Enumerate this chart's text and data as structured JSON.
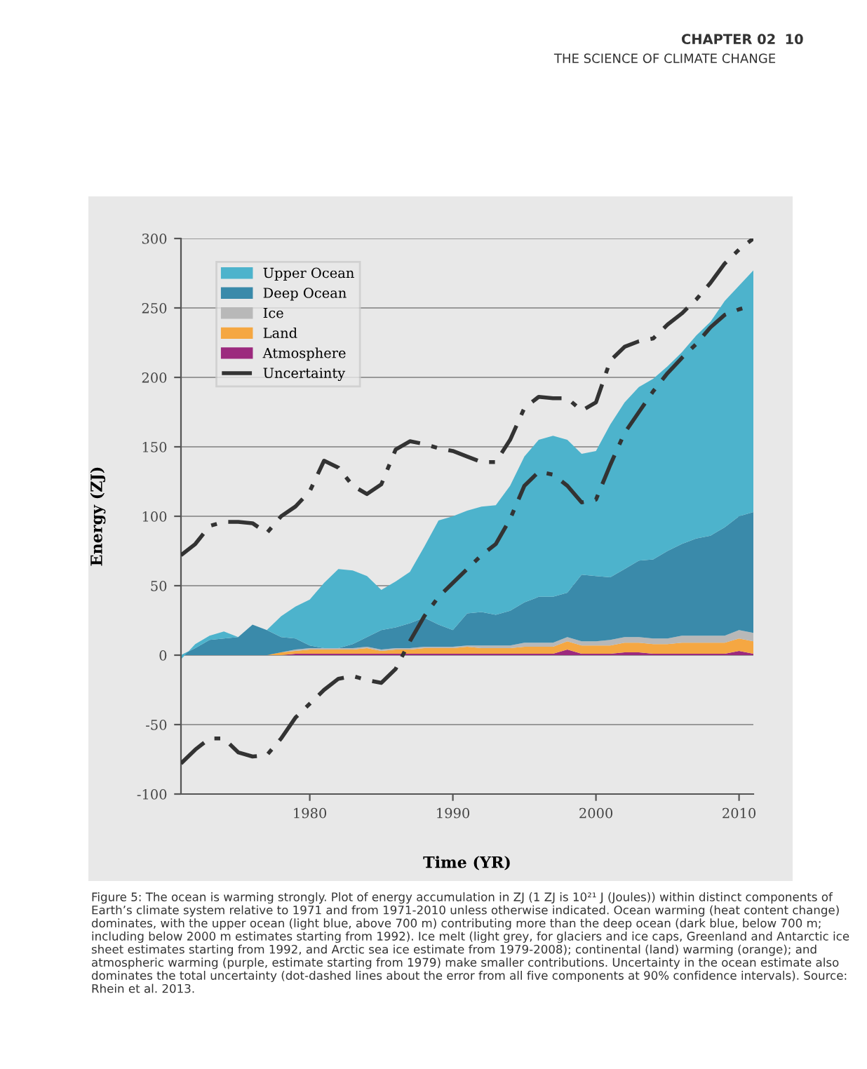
{
  "chart_data": {
    "type": "area",
    "stacked": true,
    "xlabel": "Time (YR)",
    "ylabel": "Energy (ZJ)",
    "x": [
      1971,
      1972,
      1973,
      1974,
      1975,
      1976,
      1977,
      1978,
      1979,
      1980,
      1981,
      1982,
      1983,
      1984,
      1985,
      1986,
      1987,
      1988,
      1989,
      1990,
      1991,
      1992,
      1993,
      1994,
      1995,
      1996,
      1997,
      1998,
      1999,
      2000,
      2001,
      2002,
      2003,
      2004,
      2005,
      2006,
      2007,
      2008,
      2009,
      2010,
      2011
    ],
    "series": [
      {
        "name": "Atmosphere",
        "color": "#9c2a7e",
        "values": [
          0,
          0,
          0,
          0,
          0,
          0,
          0,
          0,
          1,
          1,
          1,
          1,
          1,
          1,
          1,
          1,
          1,
          1,
          1,
          1,
          1,
          1,
          1,
          1,
          1,
          1,
          1,
          4,
          1,
          1,
          1,
          2,
          2,
          1,
          1,
          1,
          1,
          1,
          1,
          3,
          1
        ]
      },
      {
        "name": "Land",
        "color": "#f5a742",
        "values": [
          0,
          0,
          0,
          0,
          0,
          0,
          0,
          2,
          2,
          3,
          3,
          3,
          3,
          4,
          2,
          3,
          3,
          4,
          4,
          4,
          5,
          4,
          4,
          4,
          5,
          5,
          5,
          6,
          6,
          6,
          6,
          7,
          7,
          7,
          7,
          8,
          8,
          8,
          8,
          9,
          9
        ]
      },
      {
        "name": "Ice",
        "color": "#b8b8b8",
        "values": [
          0,
          0,
          0,
          0,
          0,
          0,
          0,
          0,
          1,
          1,
          1,
          1,
          1,
          1,
          1,
          1,
          1,
          1,
          1,
          1,
          1,
          2,
          2,
          2,
          3,
          3,
          3,
          3,
          3,
          3,
          4,
          4,
          4,
          4,
          4,
          5,
          5,
          5,
          5,
          6,
          6
        ]
      },
      {
        "name": "Deep Ocean",
        "color": "#3a8aaa",
        "values": [
          0,
          5,
          11,
          12,
          13,
          22,
          18,
          11,
          8,
          2,
          0,
          0,
          3,
          7,
          14,
          15,
          18,
          21,
          16,
          12,
          23,
          24,
          22,
          25,
          29,
          33,
          33,
          32,
          48,
          47,
          45,
          49,
          55,
          57,
          63,
          66,
          70,
          72,
          78,
          82,
          87
        ]
      },
      {
        "name": "Upper Ocean",
        "color": "#4db3cc",
        "values": [
          -3,
          3,
          3,
          5,
          0,
          0,
          0,
          15,
          23,
          33,
          47,
          57,
          53,
          44,
          29,
          33,
          37,
          51,
          75,
          82,
          74,
          76,
          79,
          90,
          105,
          113,
          116,
          110,
          87,
          90,
          110,
          120,
          125,
          130,
          133,
          138,
          146,
          154,
          163,
          166,
          174
        ]
      },
      {
        "name": "Uncertainty",
        "type": "line",
        "color": "#333333",
        "line_style": "dashdot",
        "values": [
          72,
          80,
          93,
          96,
          96,
          95,
          88,
          100,
          107,
          118,
          140,
          135,
          122,
          116,
          123,
          148,
          154,
          152,
          149,
          147,
          143,
          139,
          139,
          155,
          178,
          186,
          185,
          185,
          176,
          182,
          212,
          222,
          226,
          228,
          238,
          246,
          256,
          268,
          282,
          292,
          300
        ]
      },
      {
        "type": "line",
        "color": "#333333",
        "line_style": "dashdot",
        "values": [
          -78,
          -68,
          -60,
          -60,
          -70,
          -73,
          -72,
          -60,
          -45,
          -35,
          -25,
          -17,
          -15,
          -18,
          -20,
          -10,
          10,
          28,
          42,
          52,
          62,
          72,
          80,
          98,
          122,
          132,
          130,
          122,
          110,
          112,
          137,
          160,
          175,
          190,
          203,
          214,
          224,
          236,
          245,
          249,
          252
        ]
      }
    ],
    "xlim": [
      1971,
      2011
    ],
    "xticks": [
      1980,
      1990,
      2000,
      2010
    ],
    "ylim": [
      -100,
      300
    ],
    "yticks": [
      -100,
      -50,
      0,
      50,
      100,
      150,
      200,
      250,
      300
    ],
    "grid": "y",
    "legend": "top left",
    "annotations": [
      "CHAPTER 02",
      "THE SCIENCE OF CLIMATE CHANGE",
      "10",
      "Figure 5: The ocean is warming strongly. Plot of energy accumulation in ZJ (1 ZJ is 10²¹ J (Joules)) within distinct components of Earth’s climate system relative to 1971 and from 1971-2010 unless otherwise indicated. Ocean warming (heat content change) dominates, with the upper ocean (light blue, above 700 m) contributing more than the deep ocean (dark blue, below 700 m; including below 2000 m estimates starting from 1992). Ice melt (light grey, for glaciers and ice caps, Greenland and Antarctic ice sheet estimates starting from 1992, and Arctic sea ice estimate from 1979-2008); continental (land) warming (orange); and atmospheric warming (purple, estimate starting from 1979) make smaller contributions. Uncertainty in the ocean estimate also dominates the total uncertainty (dot-dashed lines about the error from all five components at 90% confidence intervals). Source: Rhein et al. 2013."
    ]
  }
}
